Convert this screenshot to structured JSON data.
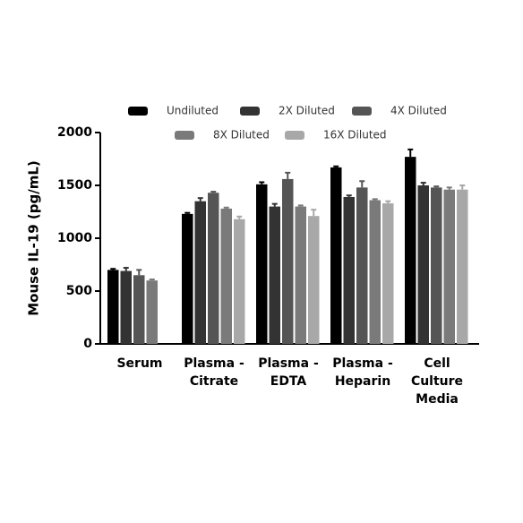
{
  "chart_data": {
    "type": "bar",
    "y_label": "Mouse IL-19 (pg/mL)",
    "categories": [
      [
        "Serum"
      ],
      [
        "Plasma -",
        "Citrate"
      ],
      [
        "Plasma -",
        "EDTA"
      ],
      [
        "Plasma -",
        "Heparin"
      ],
      [
        "Cell",
        "Culture",
        "Media"
      ]
    ],
    "series": [
      {
        "name": "Undiluted",
        "color": "#000000",
        "values": [
          700,
          1230,
          1510,
          1670,
          1770
        ],
        "errors": [
          10,
          10,
          20,
          10,
          70
        ]
      },
      {
        "name": "2X Diluted",
        "color": "#333333",
        "values": [
          690,
          1350,
          1300,
          1390,
          1500
        ],
        "errors": [
          30,
          30,
          25,
          15,
          25
        ]
      },
      {
        "name": "4X Diluted",
        "color": "#555555",
        "values": [
          650,
          1430,
          1560,
          1480,
          1480
        ],
        "errors": [
          50,
          10,
          60,
          60,
          10
        ]
      },
      {
        "name": "8X Diluted",
        "color": "#7a7a7a",
        "values": [
          600,
          1280,
          1300,
          1360,
          1460
        ],
        "errors": [
          10,
          10,
          10,
          10,
          20
        ]
      },
      {
        "name": "16X Diluted",
        "color": "#a8a8a8",
        "values": [
          null,
          1180,
          1210,
          1330,
          1460
        ],
        "errors": [
          null,
          25,
          60,
          20,
          40
        ]
      }
    ],
    "ylim": [
      0,
      2000
    ],
    "yticks": [
      0,
      500,
      1000,
      1500,
      2000
    ]
  }
}
